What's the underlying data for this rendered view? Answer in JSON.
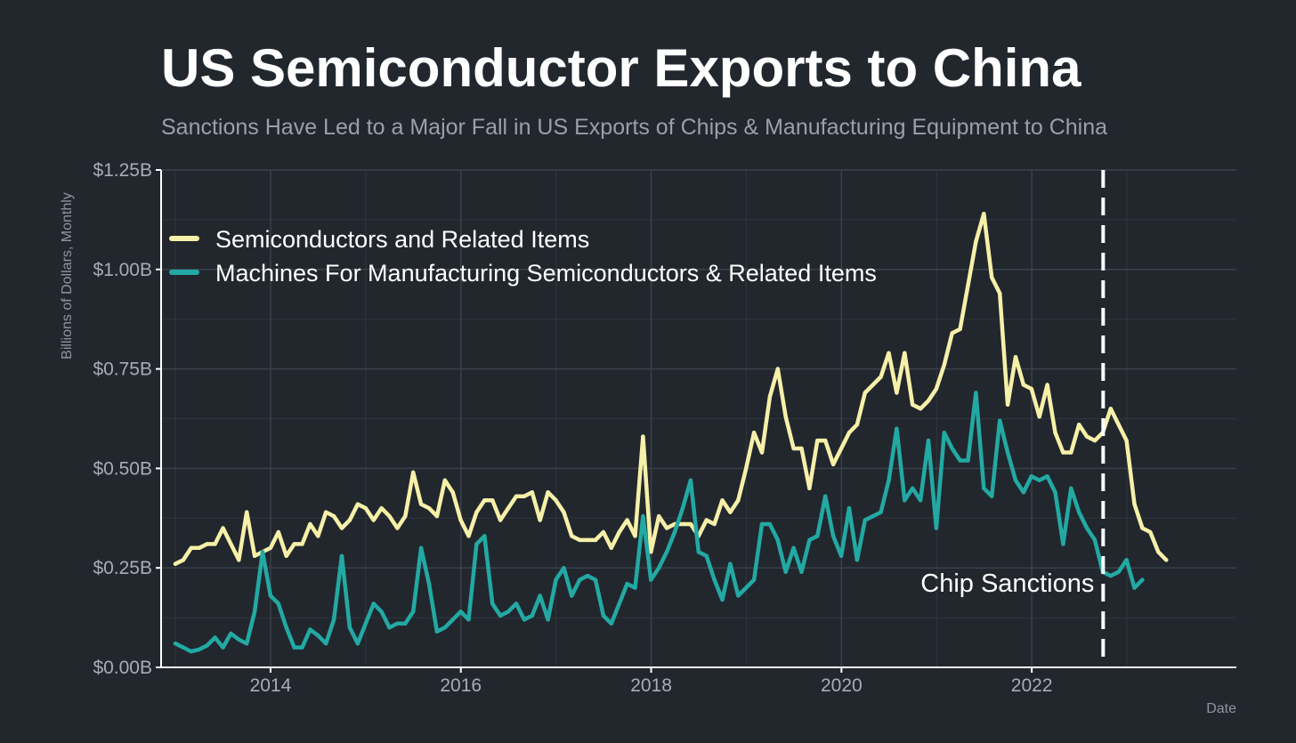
{
  "colors": {
    "background": "#22272e",
    "grid": "#3a414b",
    "axis": "#ffffff",
    "semiconductors": "#f6f0a8",
    "machines": "#23a9a3",
    "sanction_line": "#ffffff"
  },
  "chart_data": {
    "type": "line",
    "title": "US Semiconductor Exports to China",
    "subtitle": "Sanctions Have Led to a Major Fall in US Exports of Chips & Manufacturing Equipment to China",
    "xlabel": "Date",
    "ylabel": "Billions of Dollars, Monthly",
    "xlim": [
      2012.85,
      2024.15
    ],
    "ylim": [
      0,
      1.25
    ],
    "x_ticks": [
      2014,
      2016,
      2018,
      2020,
      2022
    ],
    "x_tick_labels": [
      "2014",
      "2016",
      "2018",
      "2020",
      "2022"
    ],
    "y_ticks": [
      0,
      0.25,
      0.5,
      0.75,
      1.0,
      1.25
    ],
    "y_tick_labels": [
      "$0.00B",
      "$0.25B",
      "$0.50B",
      "$0.75B",
      "$1.00B",
      "$1.25B"
    ],
    "grid": true,
    "legend_position": "top-left",
    "series": [
      {
        "name": "Semiconductors and Related Items",
        "x_start": 2013.0,
        "x_step": 0.0833,
        "values": [
          0.26,
          0.27,
          0.3,
          0.3,
          0.31,
          0.31,
          0.35,
          0.31,
          0.27,
          0.39,
          0.28,
          0.29,
          0.3,
          0.34,
          0.28,
          0.31,
          0.31,
          0.36,
          0.33,
          0.39,
          0.38,
          0.35,
          0.37,
          0.41,
          0.4,
          0.37,
          0.4,
          0.38,
          0.35,
          0.38,
          0.49,
          0.41,
          0.4,
          0.38,
          0.47,
          0.44,
          0.37,
          0.33,
          0.39,
          0.42,
          0.42,
          0.37,
          0.4,
          0.43,
          0.43,
          0.44,
          0.37,
          0.44,
          0.42,
          0.39,
          0.33,
          0.32,
          0.32,
          0.32,
          0.34,
          0.3,
          0.34,
          0.37,
          0.33,
          0.58,
          0.29,
          0.38,
          0.35,
          0.36,
          0.36,
          0.36,
          0.33,
          0.37,
          0.36,
          0.42,
          0.39,
          0.42,
          0.5,
          0.59,
          0.54,
          0.68,
          0.75,
          0.63,
          0.55,
          0.55,
          0.45,
          0.57,
          0.57,
          0.51,
          0.55,
          0.59,
          0.61,
          0.69,
          0.71,
          0.73,
          0.79,
          0.69,
          0.79,
          0.66,
          0.65,
          0.67,
          0.7,
          0.76,
          0.84,
          0.85,
          0.96,
          1.07,
          1.14,
          0.98,
          0.94,
          0.66,
          0.78,
          0.71,
          0.7,
          0.63,
          0.71,
          0.59,
          0.54,
          0.54,
          0.61,
          0.58,
          0.57,
          0.59,
          0.65,
          0.61,
          0.57,
          0.41,
          0.35,
          0.34,
          0.29,
          0.27
        ]
      },
      {
        "name": "Machines For Manufacturing Semiconductors & Related Items",
        "x_start": 2013.0,
        "x_step": 0.0833,
        "values": [
          0.06,
          0.05,
          0.04,
          0.045,
          0.055,
          0.075,
          0.05,
          0.085,
          0.07,
          0.06,
          0.14,
          0.29,
          0.18,
          0.16,
          0.1,
          0.05,
          0.05,
          0.095,
          0.08,
          0.06,
          0.12,
          0.28,
          0.1,
          0.06,
          0.11,
          0.16,
          0.14,
          0.1,
          0.11,
          0.11,
          0.14,
          0.3,
          0.21,
          0.09,
          0.1,
          0.12,
          0.14,
          0.12,
          0.31,
          0.33,
          0.16,
          0.13,
          0.14,
          0.16,
          0.12,
          0.13,
          0.18,
          0.12,
          0.22,
          0.25,
          0.18,
          0.22,
          0.23,
          0.22,
          0.13,
          0.11,
          0.16,
          0.21,
          0.2,
          0.38,
          0.22,
          0.25,
          0.29,
          0.34,
          0.4,
          0.47,
          0.29,
          0.28,
          0.22,
          0.17,
          0.26,
          0.18,
          0.2,
          0.22,
          0.36,
          0.36,
          0.32,
          0.24,
          0.3,
          0.24,
          0.32,
          0.33,
          0.43,
          0.33,
          0.28,
          0.4,
          0.27,
          0.37,
          0.38,
          0.39,
          0.47,
          0.6,
          0.42,
          0.45,
          0.42,
          0.57,
          0.35,
          0.59,
          0.55,
          0.52,
          0.52,
          0.69,
          0.45,
          0.43,
          0.62,
          0.54,
          0.47,
          0.44,
          0.48,
          0.47,
          0.48,
          0.44,
          0.31,
          0.45,
          0.39,
          0.35,
          0.32,
          0.24,
          0.23,
          0.24,
          0.27,
          0.2,
          0.22
        ]
      }
    ],
    "annotations": [
      {
        "text": "Chip Sanctions",
        "x": 2022.75
      }
    ]
  }
}
